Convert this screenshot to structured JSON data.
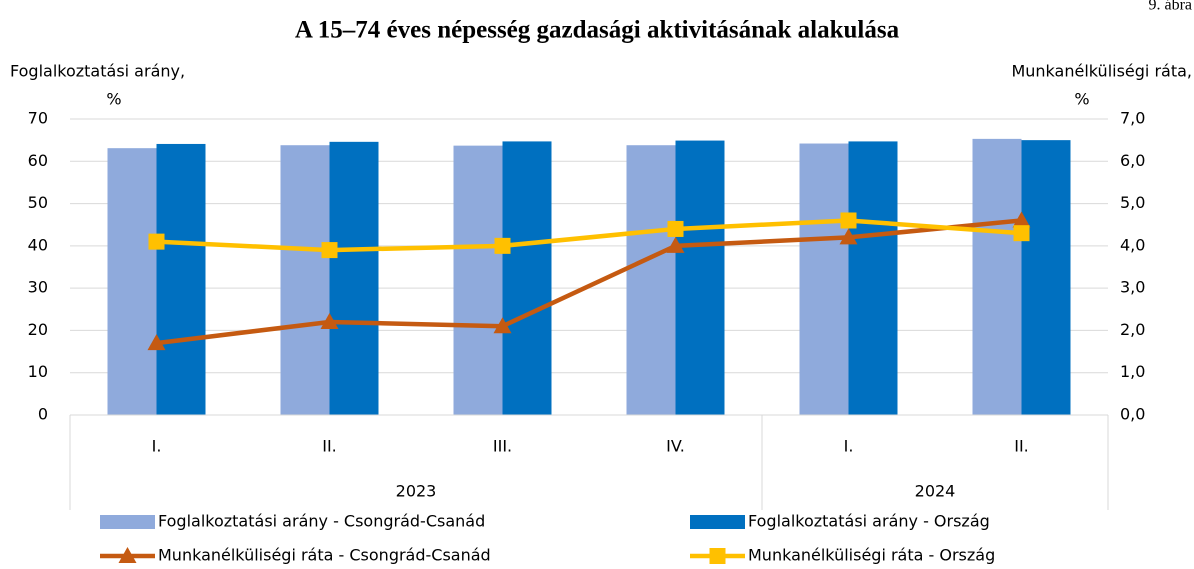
{
  "chart_data": {
    "type": "bar",
    "title": "A 15–74 éves népesség gazdasági aktivitásának alakulása",
    "note": "9. ábra",
    "y_label": [
      "Foglalkoztatási arány,",
      "%"
    ],
    "y2_label": [
      "Munkanélküliségi ráta,",
      "%"
    ],
    "groups": [
      {
        "name": "2023",
        "categories": [
          "I.",
          "II.",
          "III.",
          "IV."
        ]
      },
      {
        "name": "2024",
        "categories": [
          "I.",
          "II."
        ]
      }
    ],
    "ylim": [
      0,
      70
    ],
    "yticks": [
      0,
      10,
      20,
      30,
      40,
      50,
      60,
      70
    ],
    "y2lim": [
      0,
      7
    ],
    "y2ticks": [
      {
        "value": 0,
        "label": "0,0"
      },
      {
        "value": 1,
        "label": "1,0"
      },
      {
        "value": 2,
        "label": "2,0"
      },
      {
        "value": 3,
        "label": "3,0"
      },
      {
        "value": 4,
        "label": "4,0"
      },
      {
        "value": 5,
        "label": "5,0"
      },
      {
        "value": 6,
        "label": "6,0"
      },
      {
        "value": 7,
        "label": "7,0"
      }
    ],
    "series": [
      {
        "name": "Foglalkoztatási arány - Csongrád-Csanád",
        "type": "bar",
        "color": "#8faadc",
        "values": [
          63.1,
          63.8,
          63.7,
          63.8,
          64.2,
          65.3
        ]
      },
      {
        "name": "Foglalkoztatási arány - Ország",
        "type": "bar",
        "color": "#0070c0",
        "values": [
          64.1,
          64.6,
          64.7,
          64.9,
          64.7,
          65.0
        ]
      },
      {
        "name": "Munkanélküliségi ráta - Csongrád-Csanád",
        "type": "line",
        "axis": "y2",
        "marker": "triangle",
        "color": "#c55a11",
        "values": [
          1.7,
          2.2,
          2.1,
          4.0,
          4.2,
          4.6
        ]
      },
      {
        "name": "Munkanélküliségi ráta - Ország",
        "type": "line",
        "axis": "y2",
        "marker": "square",
        "color": "#ffc000",
        "values": [
          4.1,
          3.9,
          4.0,
          4.4,
          4.6,
          4.3
        ]
      }
    ]
  }
}
